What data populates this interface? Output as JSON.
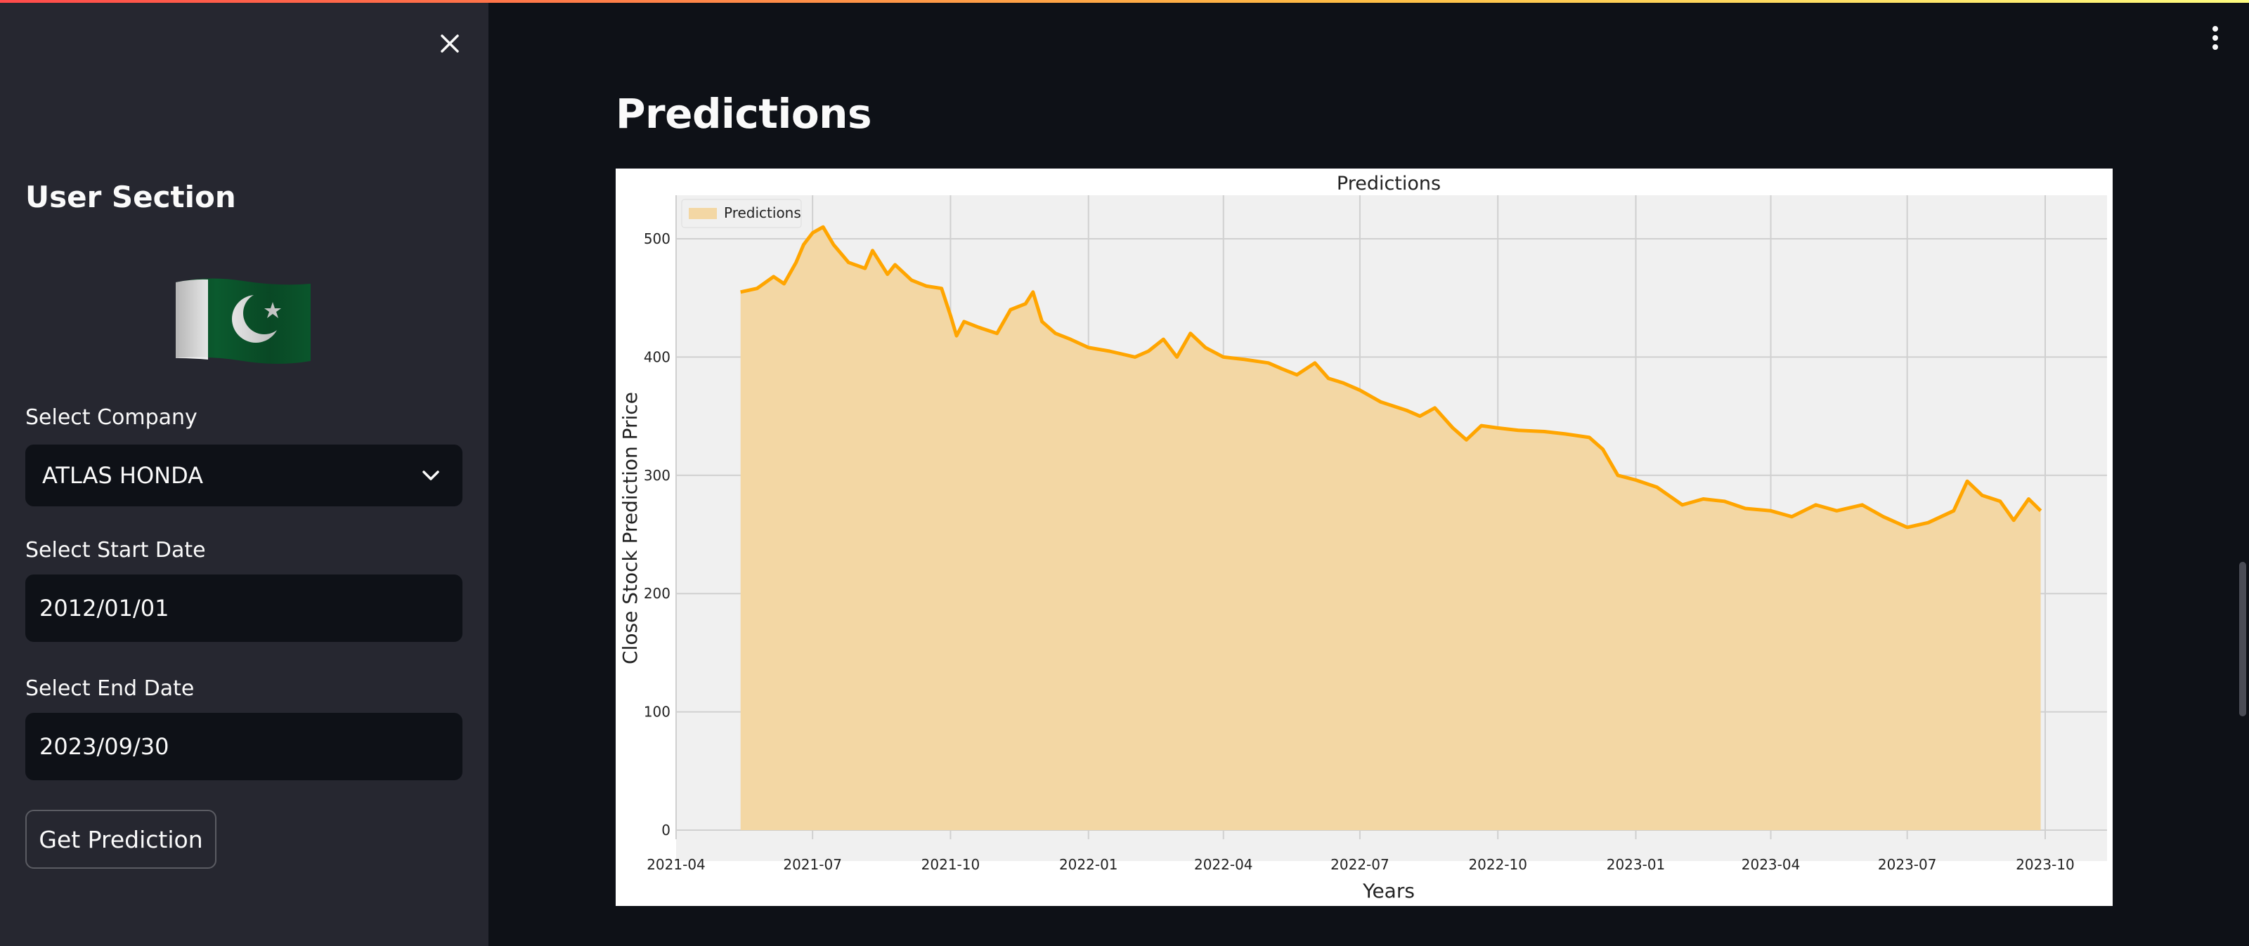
{
  "sidebar": {
    "title": "User Section",
    "flag_icon": "pakistan-flag-icon",
    "company_label": "Select Company",
    "company_value": "ATLAS HONDA",
    "start_label": "Select Start Date",
    "start_value": "2012/01/01",
    "end_label": "Select End Date",
    "end_value": "2023/09/30",
    "button_label": "Get Prediction"
  },
  "main": {
    "title": "Predictions"
  },
  "colors": {
    "accent_line": "#ffa500",
    "area_fill": "#f3d7a4",
    "plot_bg": "#f0f0f0"
  },
  "chart_data": {
    "type": "area",
    "title": "Predictions",
    "xlabel": "Years",
    "ylabel": "Close Stock Prediction Price",
    "legend": [
      "Predictions"
    ],
    "legend_position": "top-left",
    "grid": true,
    "ylim": [
      0,
      540
    ],
    "yticks": [
      0,
      100,
      200,
      300,
      400,
      500
    ],
    "xticks": [
      "2021-04",
      "2021-07",
      "2021-10",
      "2022-01",
      "2022-04",
      "2022-07",
      "2022-10",
      "2023-01",
      "2023-04",
      "2023-07",
      "2023-10"
    ],
    "series": [
      {
        "name": "Predictions",
        "x": [
          "2021-05-14",
          "2021-05-25",
          "2021-06-05",
          "2021-06-12",
          "2021-06-20",
          "2021-06-25",
          "2021-07-01",
          "2021-07-08",
          "2021-07-15",
          "2021-07-25",
          "2021-08-05",
          "2021-08-10",
          "2021-08-20",
          "2021-08-25",
          "2021-09-05",
          "2021-09-15",
          "2021-09-25",
          "2021-10-01",
          "2021-10-05",
          "2021-10-10",
          "2021-10-20",
          "2021-11-01",
          "2021-11-10",
          "2021-11-20",
          "2021-11-25",
          "2021-12-01",
          "2021-12-10",
          "2021-12-20",
          "2022-01-01",
          "2022-01-15",
          "2022-02-01",
          "2022-02-10",
          "2022-02-20",
          "2022-03-01",
          "2022-03-10",
          "2022-03-20",
          "2022-04-01",
          "2022-04-15",
          "2022-05-01",
          "2022-05-10",
          "2022-05-20",
          "2022-06-01",
          "2022-06-10",
          "2022-06-20",
          "2022-07-01",
          "2022-07-15",
          "2022-08-01",
          "2022-08-10",
          "2022-08-20",
          "2022-09-01",
          "2022-09-10",
          "2022-09-20",
          "2022-10-01",
          "2022-10-15",
          "2022-11-01",
          "2022-11-15",
          "2022-12-01",
          "2022-12-10",
          "2022-12-20",
          "2023-01-01",
          "2023-01-15",
          "2023-02-01",
          "2023-02-15",
          "2023-03-01",
          "2023-03-15",
          "2023-04-01",
          "2023-04-15",
          "2023-05-01",
          "2023-05-15",
          "2023-06-01",
          "2023-06-15",
          "2023-07-01",
          "2023-07-15",
          "2023-08-01",
          "2023-08-10",
          "2023-08-20",
          "2023-09-01",
          "2023-09-10",
          "2023-09-20",
          "2023-09-28"
        ],
        "values": [
          455,
          458,
          468,
          462,
          480,
          495,
          505,
          510,
          495,
          480,
          475,
          490,
          470,
          478,
          465,
          460,
          458,
          435,
          418,
          430,
          425,
          420,
          440,
          445,
          455,
          430,
          420,
          415,
          408,
          405,
          400,
          405,
          415,
          400,
          420,
          408,
          400,
          398,
          395,
          390,
          385,
          395,
          382,
          378,
          372,
          362,
          355,
          350,
          357,
          340,
          330,
          342,
          340,
          338,
          337,
          335,
          332,
          322,
          300,
          296,
          290,
          275,
          280,
          278,
          272,
          270,
          265,
          275,
          270,
          275,
          265,
          256,
          260,
          270,
          295,
          283,
          278,
          262,
          280,
          270
        ],
        "color": "#ffa500"
      }
    ]
  }
}
